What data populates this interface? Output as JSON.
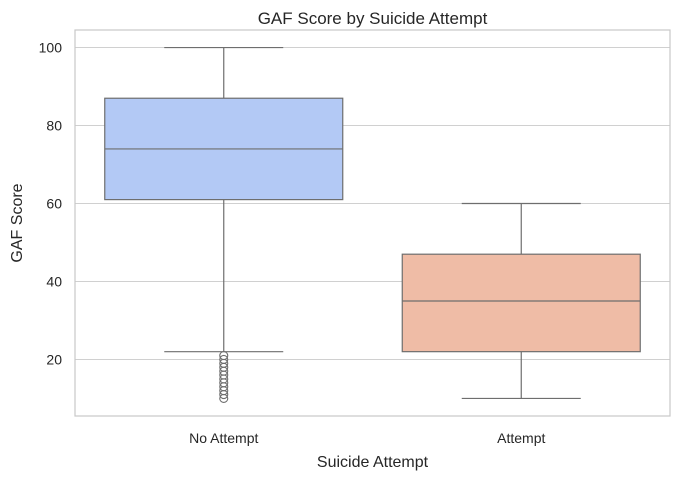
{
  "chart_data": {
    "type": "box",
    "title": "GAF Score by Suicide Attempt",
    "xlabel": "Suicide Attempt",
    "ylabel": "GAF Score",
    "ylim": [
      5.5,
      104.5
    ],
    "yticks": [
      20,
      40,
      60,
      80,
      100
    ],
    "grid": true,
    "legend": "none",
    "categories": [
      "No Attempt",
      "Attempt"
    ],
    "boxes": [
      {
        "category": "No Attempt",
        "whisker_low": 22,
        "q1": 61,
        "median": 74,
        "q3": 87,
        "whisker_high": 100,
        "color": "#b3c9f5",
        "fliers": [
          10,
          11,
          12,
          13,
          14,
          15,
          16,
          17,
          18,
          19,
          20,
          21
        ]
      },
      {
        "category": "Attempt",
        "whisker_low": 10,
        "q1": 22,
        "median": 35,
        "q3": 47,
        "whisker_high": 60,
        "color": "#efbca6",
        "fliers": []
      }
    ]
  }
}
